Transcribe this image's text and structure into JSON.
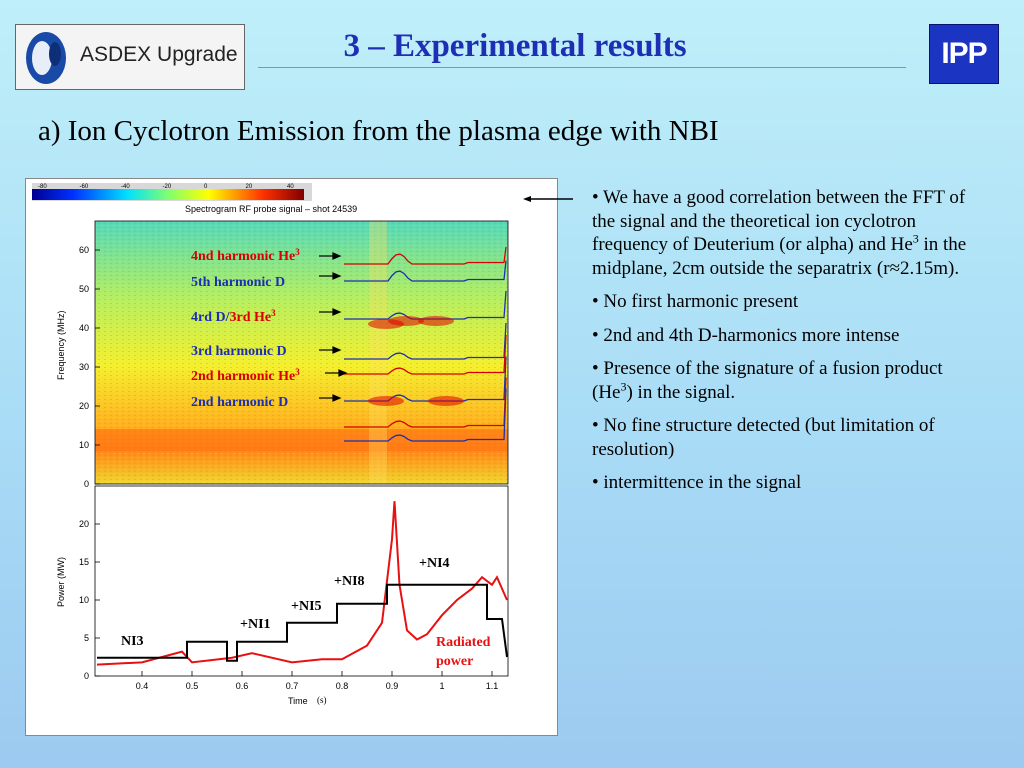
{
  "header": {
    "logo_text": "ASDEX Upgrade",
    "title": "3 – Experimental results",
    "ipp_logo": "IPP"
  },
  "subtitle": "a) Ion Cyclotron Emission from the plasma edge with NBI",
  "figure": {
    "colorbar_ticks": [
      "-80",
      "-60",
      "-40",
      "-20",
      "0",
      "20",
      "40"
    ],
    "spectrogram_title": "Spectrogram RF probe signal – shot 24539",
    "freq_ylabel": "Frequency (MHz)",
    "power_ylabel": "Power   (MW)",
    "xlabel": "Time",
    "xlabel_unit": "(s)",
    "freq_ticks": [
      "60",
      "50",
      "40",
      "30",
      "20",
      "10",
      "0"
    ],
    "power_ticks": [
      "20",
      "15",
      "10",
      "5",
      "0"
    ],
    "time_ticks": [
      "0.4",
      "0.5",
      "0.6",
      "0.7",
      "0.8",
      "0.9",
      "1",
      "1.1"
    ],
    "harmonic_labels": {
      "h1": "4nd harmonic He",
      "h1_sup": "3",
      "h2": "5th harmonic D",
      "h3a": "4rd  D/",
      "h3b": "3rd He",
      "h3_sup": "3",
      "h4": "3rd harmonic D",
      "h5": "2nd harmonic He",
      "h5_sup": "3",
      "h6": "2nd harmonic D"
    },
    "power_labels": {
      "ni3": "NI3",
      "ni1": "+NI1",
      "ni5": "+NI5",
      "ni8": "+NI8",
      "ni4": "+NI4",
      "radiated_1": "Radiated",
      "radiated_2": "power"
    },
    "colors": {
      "label_red": "#d80000",
      "label_blue": "#1c2fb0",
      "radiated": "#e81010",
      "power": "#000000"
    }
  },
  "bullets": [
    {
      "parts": [
        "• We have a good correlation between the FFT of the signal and the theoretical ion cyclotron frequency of Deuterium (or alpha) and He",
        "3",
        " in the midplane, 2cm outside the separatrix (r≈2.15m)."
      ]
    },
    {
      "parts": [
        "• No first harmonic present"
      ]
    },
    {
      "parts": [
        "• 2nd and 4th D-harmonics more intense"
      ]
    },
    {
      "parts": [
        "• Presence of the signature of a fusion product (He",
        "3",
        ") in the signal."
      ]
    },
    {
      "parts": [
        "• No fine structure detected (but limitation of resolution)"
      ]
    },
    {
      "parts": [
        "• intermittence in the signal"
      ]
    }
  ]
}
